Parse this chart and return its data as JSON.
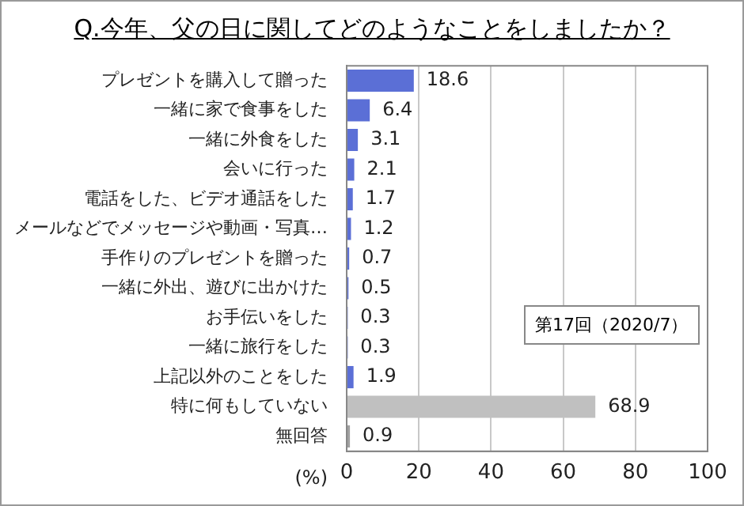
{
  "chart_data": {
    "type": "bar",
    "orientation": "horizontal",
    "title": "Q.今年、父の日に関してどのようなことをしましたか？",
    "xlabel": "(%)",
    "categories": [
      "プレゼントを購入して贈った",
      "一緒に家で食事をした",
      "一緒に外食をした",
      "会いに行った",
      "電話をした、ビデオ通話をした",
      "メールなどでメッセージや動画・写真…",
      "手作りのプレゼントを贈った",
      "一緒に外出、遊びに出かけた",
      "お手伝いをした",
      "一緒に旅行をした",
      "上記以外のことをした",
      "特に何もしていない",
      "無回答"
    ],
    "values": [
      18.6,
      6.4,
      3.1,
      2.1,
      1.7,
      1.2,
      0.7,
      0.5,
      0.3,
      0.3,
      1.9,
      68.9,
      0.9
    ],
    "colors": [
      "#5b6fd6",
      "#5b6fd6",
      "#5b6fd6",
      "#5b6fd6",
      "#5b6fd6",
      "#5b6fd6",
      "#5b6fd6",
      "#5b6fd6",
      "#5b6fd6",
      "#5b6fd6",
      "#5b6fd6",
      "#c0c0c0",
      "#a0a0a0"
    ],
    "xlim": [
      0,
      100
    ],
    "xticks": [
      0,
      20,
      40,
      60,
      80,
      100
    ],
    "grid": "x",
    "data_labels": true,
    "annotations": [
      "第17回（2020/7）"
    ]
  }
}
